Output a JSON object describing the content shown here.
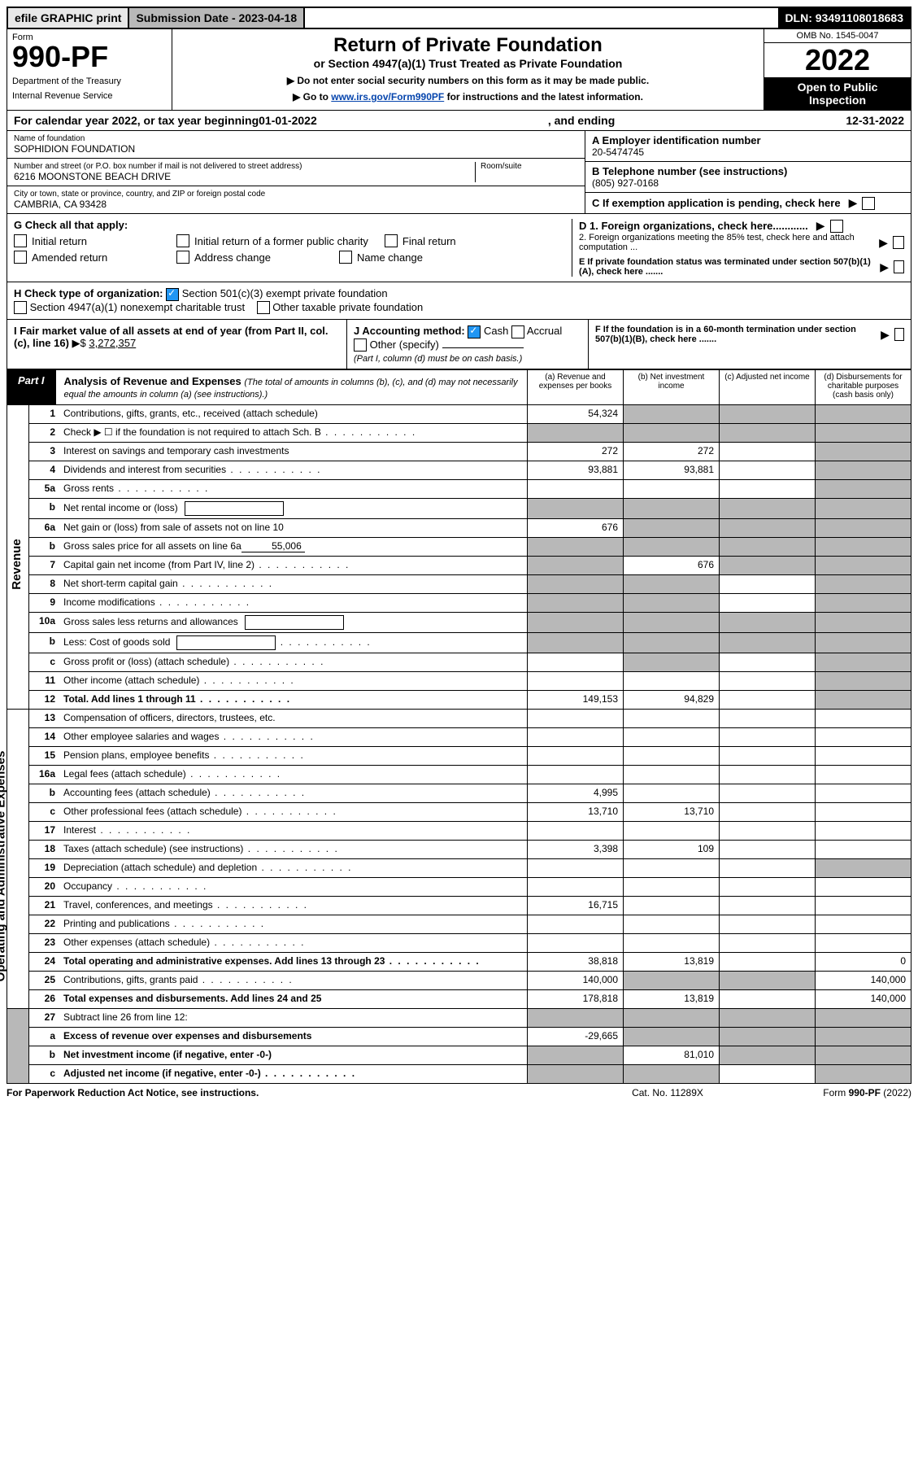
{
  "top": {
    "efile": "efile GRAPHIC print",
    "submission": "Submission Date - 2023-04-18",
    "dln": "DLN: 93491108018683"
  },
  "header": {
    "form_label": "Form",
    "form_number": "990-PF",
    "dept": "Department of the Treasury",
    "irs": "Internal Revenue Service",
    "title": "Return of Private Foundation",
    "subtitle": "or Section 4947(a)(1) Trust Treated as Private Foundation",
    "note1": "▶ Do not enter social security numbers on this form as it may be made public.",
    "note2_pre": "▶ Go to ",
    "note2_link": "www.irs.gov/Form990PF",
    "note2_post": " for instructions and the latest information.",
    "omb": "OMB No. 1545-0047",
    "year": "2022",
    "open": "Open to Public Inspection"
  },
  "cal_year": {
    "pre": "For calendar year 2022, or tax year beginning ",
    "begin": "01-01-2022",
    "mid": ", and ending ",
    "end": "12-31-2022"
  },
  "entity": {
    "name_label": "Name of foundation",
    "name": "SOPHIDION FOUNDATION",
    "addr_label": "Number and street (or P.O. box number if mail is not delivered to street address)",
    "addr": "6216 MOONSTONE BEACH DRIVE",
    "room_label": "Room/suite",
    "city_label": "City or town, state or province, country, and ZIP or foreign postal code",
    "city": "CAMBRIA, CA  93428",
    "a_label": "A Employer identification number",
    "a_val": "20-5474745",
    "b_label": "B Telephone number (see instructions)",
    "b_val": "(805) 927-0168",
    "c_label": "C If exemption application is pending, check here"
  },
  "g": {
    "label": "G Check all that apply:",
    "opts": [
      "Initial return",
      "Initial return of a former public charity",
      "Final return",
      "Amended return",
      "Address change",
      "Name change"
    ],
    "d1": "D 1. Foreign organizations, check here............",
    "d2": "2. Foreign organizations meeting the 85% test, check here and attach computation ...",
    "e": "E  If private foundation status was terminated under section 507(b)(1)(A), check here ......."
  },
  "h": {
    "label": "H Check type of organization:",
    "opt1": "Section 501(c)(3) exempt private foundation",
    "opt2": "Section 4947(a)(1) nonexempt charitable trust",
    "opt3": "Other taxable private foundation",
    "i_label": "I Fair market value of all assets at end of year (from Part II, col. (c), line 16)",
    "i_val": "3,272,357",
    "j_label": "J Accounting method:",
    "j_cash": "Cash",
    "j_accrual": "Accrual",
    "j_other": "Other (specify)",
    "j_note": "(Part I, column (d) must be on cash basis.)",
    "f": "F  If the foundation is in a 60-month termination under section 507(b)(1)(B), check here ......."
  },
  "part1": {
    "tab": "Part I",
    "title": "Analysis of Revenue and Expenses",
    "title_note": " (The total of amounts in columns (b), (c), and (d) may not necessarily equal the amounts in column (a) (see instructions).)",
    "col_a": "(a) Revenue and expenses per books",
    "col_b": "(b) Net investment income",
    "col_c": "(c) Adjusted net income",
    "col_d": "(d) Disbursements for charitable purposes (cash basis only)"
  },
  "side": {
    "revenue": "Revenue",
    "expenses": "Operating and Administrative Expenses"
  },
  "rows": [
    {
      "n": "1",
      "d": "Contributions, gifts, grants, etc., received (attach schedule)",
      "a": "54,324",
      "b": "shaded",
      "c": "shaded",
      "db": "shaded"
    },
    {
      "n": "2",
      "d": "Check ▶ ☐ if the foundation is not required to attach Sch. B",
      "dots": true,
      "a": "shaded",
      "b": "shaded",
      "c": "shaded",
      "db": "shaded"
    },
    {
      "n": "3",
      "d": "Interest on savings and temporary cash investments",
      "a": "272",
      "b": "272",
      "c": "",
      "db": "shaded"
    },
    {
      "n": "4",
      "d": "Dividends and interest from securities",
      "dots": true,
      "a": "93,881",
      "b": "93,881",
      "c": "",
      "db": "shaded"
    },
    {
      "n": "5a",
      "d": "Gross rents",
      "dots": true,
      "a": "",
      "b": "",
      "c": "",
      "db": "shaded"
    },
    {
      "n": "b",
      "d": "Net rental income or (loss)",
      "inline_box": true,
      "a": "shaded",
      "b": "shaded",
      "c": "shaded",
      "db": "shaded"
    },
    {
      "n": "6a",
      "d": "Net gain or (loss) from sale of assets not on line 10",
      "a": "676",
      "b": "shaded",
      "c": "shaded",
      "db": "shaded"
    },
    {
      "n": "b",
      "d": "Gross sales price for all assets on line 6a",
      "inline_val": "55,006",
      "a": "shaded",
      "b": "shaded",
      "c": "shaded",
      "db": "shaded"
    },
    {
      "n": "7",
      "d": "Capital gain net income (from Part IV, line 2)",
      "dots": true,
      "a": "shaded",
      "b": "676",
      "c": "shaded",
      "db": "shaded"
    },
    {
      "n": "8",
      "d": "Net short-term capital gain",
      "dots": true,
      "a": "shaded",
      "b": "shaded",
      "c": "",
      "db": "shaded"
    },
    {
      "n": "9",
      "d": "Income modifications",
      "dots": true,
      "a": "shaded",
      "b": "shaded",
      "c": "",
      "db": "shaded"
    },
    {
      "n": "10a",
      "d": "Gross sales less returns and allowances",
      "inline_box": true,
      "a": "shaded",
      "b": "shaded",
      "c": "shaded",
      "db": "shaded"
    },
    {
      "n": "b",
      "d": "Less: Cost of goods sold",
      "dots": true,
      "inline_box": true,
      "a": "shaded",
      "b": "shaded",
      "c": "shaded",
      "db": "shaded"
    },
    {
      "n": "c",
      "d": "Gross profit or (loss) (attach schedule)",
      "dots": true,
      "a": "",
      "b": "shaded",
      "c": "",
      "db": "shaded"
    },
    {
      "n": "11",
      "d": "Other income (attach schedule)",
      "dots": true,
      "a": "",
      "b": "",
      "c": "",
      "db": "shaded"
    },
    {
      "n": "12",
      "d": "Total. Add lines 1 through 11",
      "dots": true,
      "bold": true,
      "a": "149,153",
      "b": "94,829",
      "c": "",
      "db": "shaded"
    }
  ],
  "exp_rows": [
    {
      "n": "13",
      "d": "Compensation of officers, directors, trustees, etc.",
      "a": "",
      "b": "",
      "c": "",
      "db": ""
    },
    {
      "n": "14",
      "d": "Other employee salaries and wages",
      "dots": true,
      "a": "",
      "b": "",
      "c": "",
      "db": ""
    },
    {
      "n": "15",
      "d": "Pension plans, employee benefits",
      "dots": true,
      "a": "",
      "b": "",
      "c": "",
      "db": ""
    },
    {
      "n": "16a",
      "d": "Legal fees (attach schedule)",
      "dots": true,
      "a": "",
      "b": "",
      "c": "",
      "db": ""
    },
    {
      "n": "b",
      "d": "Accounting fees (attach schedule)",
      "dots": true,
      "a": "4,995",
      "b": "",
      "c": "",
      "db": ""
    },
    {
      "n": "c",
      "d": "Other professional fees (attach schedule)",
      "dots": true,
      "a": "13,710",
      "b": "13,710",
      "c": "",
      "db": ""
    },
    {
      "n": "17",
      "d": "Interest",
      "dots": true,
      "a": "",
      "b": "",
      "c": "",
      "db": ""
    },
    {
      "n": "18",
      "d": "Taxes (attach schedule) (see instructions)",
      "dots": true,
      "a": "3,398",
      "b": "109",
      "c": "",
      "db": ""
    },
    {
      "n": "19",
      "d": "Depreciation (attach schedule) and depletion",
      "dots": true,
      "a": "",
      "b": "",
      "c": "",
      "db": "shaded"
    },
    {
      "n": "20",
      "d": "Occupancy",
      "dots": true,
      "a": "",
      "b": "",
      "c": "",
      "db": ""
    },
    {
      "n": "21",
      "d": "Travel, conferences, and meetings",
      "dots": true,
      "a": "16,715",
      "b": "",
      "c": "",
      "db": ""
    },
    {
      "n": "22",
      "d": "Printing and publications",
      "dots": true,
      "a": "",
      "b": "",
      "c": "",
      "db": ""
    },
    {
      "n": "23",
      "d": "Other expenses (attach schedule)",
      "dots": true,
      "a": "",
      "b": "",
      "c": "",
      "db": ""
    },
    {
      "n": "24",
      "d": "Total operating and administrative expenses. Add lines 13 through 23",
      "dots": true,
      "bold": true,
      "a": "38,818",
      "b": "13,819",
      "c": "",
      "db": "0"
    },
    {
      "n": "25",
      "d": "Contributions, gifts, grants paid",
      "dots": true,
      "a": "140,000",
      "b": "shaded",
      "c": "shaded",
      "db": "140,000"
    },
    {
      "n": "26",
      "d": "Total expenses and disbursements. Add lines 24 and 25",
      "bold": true,
      "a": "178,818",
      "b": "13,819",
      "c": "",
      "db": "140,000"
    }
  ],
  "final_rows": [
    {
      "n": "27",
      "d": "Subtract line 26 from line 12:",
      "a": "shaded",
      "b": "shaded",
      "c": "shaded",
      "db": "shaded"
    },
    {
      "n": "a",
      "d": "Excess of revenue over expenses and disbursements",
      "bold": true,
      "a": "-29,665",
      "b": "shaded",
      "c": "shaded",
      "db": "shaded"
    },
    {
      "n": "b",
      "d": "Net investment income (if negative, enter -0-)",
      "bold": true,
      "a": "shaded",
      "b": "81,010",
      "c": "shaded",
      "db": "shaded"
    },
    {
      "n": "c",
      "d": "Adjusted net income (if negative, enter -0-)",
      "bold": true,
      "dots": true,
      "a": "shaded",
      "b": "shaded",
      "c": "",
      "db": "shaded"
    }
  ],
  "footer": {
    "left": "For Paperwork Reduction Act Notice, see instructions.",
    "mid": "Cat. No. 11289X",
    "right": "Form 990-PF (2022)"
  }
}
